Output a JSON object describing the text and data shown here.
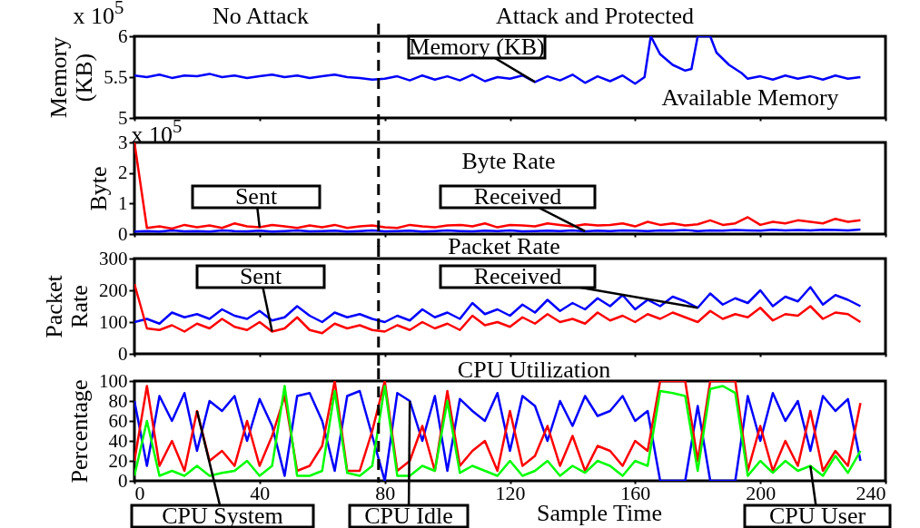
{
  "chart_data": [
    {
      "type": "line",
      "ylabel": "Memory (KB)",
      "xlim": [
        0,
        240
      ],
      "xticks": [
        0,
        40,
        80,
        120,
        160,
        200,
        240
      ],
      "ylim": [
        5,
        6
      ],
      "yticks": [
        5,
        5.5,
        6
      ],
      "tick_labels": "y",
      "x": [
        0,
        4,
        8,
        12,
        16,
        20,
        24,
        28,
        32,
        36,
        40,
        44,
        48,
        52,
        56,
        60,
        64,
        68,
        72,
        76,
        80,
        84,
        88,
        92,
        96,
        100,
        104,
        108,
        112,
        116,
        120,
        124,
        128,
        132,
        136,
        140,
        144,
        148,
        152,
        156,
        160,
        163,
        165,
        168,
        172,
        176,
        178,
        180,
        184,
        186,
        190,
        194,
        196,
        200,
        204,
        208,
        212,
        216,
        220,
        224,
        228,
        232
      ],
      "series": [
        {
          "color": "#0000ff",
          "values": [
            5.52,
            5.5,
            5.53,
            5.49,
            5.52,
            5.51,
            5.54,
            5.5,
            5.52,
            5.49,
            5.51,
            5.53,
            5.5,
            5.52,
            5.49,
            5.51,
            5.53,
            5.5,
            5.49,
            5.47,
            5.48,
            5.51,
            5.46,
            5.52,
            5.47,
            5.51,
            5.46,
            5.53,
            5.45,
            5.5,
            5.48,
            5.52,
            5.44,
            5.51,
            5.46,
            5.53,
            5.43,
            5.51,
            5.45,
            5.52,
            5.42,
            5.5,
            6,
            5.78,
            5.65,
            5.58,
            5.6,
            6,
            6,
            5.8,
            5.65,
            5.55,
            5.48,
            5.51,
            5.47,
            5.52,
            5.48,
            5.51,
            5.47,
            5.52,
            5.48,
            5.5
          ]
        }
      ],
      "ref_lines": [
        {
          "axis": "x",
          "value": 78,
          "line_style": "dashed"
        }
      ],
      "annotations": [
        "x 10$^{5}$",
        "No Attack",
        "Attack and Protected",
        "Available Memory",
        {
          "text": "Memory (KB)",
          "x": 128,
          "y": 5.44
        }
      ]
    },
    {
      "type": "line",
      "title": "Byte Rate",
      "ylabel": "Byte",
      "xlim": [
        0,
        240
      ],
      "xticks": [
        0,
        40,
        80,
        120,
        160,
        200,
        240
      ],
      "ylim": [
        0,
        3
      ],
      "yticks": [
        0,
        1,
        2,
        3
      ],
      "tick_labels": "y",
      "x": [
        0,
        4,
        8,
        12,
        16,
        20,
        24,
        28,
        32,
        36,
        40,
        44,
        48,
        52,
        56,
        60,
        64,
        68,
        72,
        76,
        80,
        84,
        88,
        92,
        96,
        100,
        104,
        108,
        112,
        116,
        120,
        124,
        128,
        132,
        136,
        140,
        144,
        148,
        152,
        156,
        160,
        164,
        168,
        172,
        176,
        180,
        184,
        188,
        192,
        196,
        200,
        204,
        208,
        212,
        216,
        220,
        224,
        228,
        232
      ],
      "series": [
        {
          "color": "#0000ff",
          "values": [
            0.08,
            0.1,
            0.08,
            0.12,
            0.09,
            0.1,
            0.08,
            0.12,
            0.1,
            0.09,
            0.11,
            0.08,
            0.1,
            0.12,
            0.09,
            0.1,
            0.11,
            0.08,
            0.1,
            0.12,
            0.09,
            0.1,
            0.11,
            0.08,
            0.1,
            0.12,
            0.1,
            0.09,
            0.11,
            0.1,
            0.12,
            0.09,
            0.1,
            0.11,
            0.1,
            0.12,
            0.09,
            0.11,
            0.1,
            0.12,
            0.11,
            0.1,
            0.12,
            0.11,
            0.13,
            0.1,
            0.12,
            0.11,
            0.13,
            0.12,
            0.11,
            0.14,
            0.12,
            0.13,
            0.12,
            0.14,
            0.13,
            0.12,
            0.15
          ]
        },
        {
          "color": "#ff0000",
          "values": [
            3,
            0.2,
            0.25,
            0.18,
            0.3,
            0.22,
            0.28,
            0.2,
            0.35,
            0.25,
            0.22,
            0.3,
            0.25,
            0.2,
            0.28,
            0.22,
            0.3,
            0.2,
            0.25,
            0.28,
            0.22,
            0.2,
            0.3,
            0.25,
            0.22,
            0.28,
            0.3,
            0.25,
            0.35,
            0.22,
            0.3,
            0.28,
            0.25,
            0.35,
            0.3,
            0.25,
            0.32,
            0.28,
            0.3,
            0.35,
            0.25,
            0.4,
            0.3,
            0.35,
            0.28,
            0.32,
            0.45,
            0.3,
            0.35,
            0.55,
            0.3,
            0.4,
            0.35,
            0.45,
            0.4,
            0.35,
            0.5,
            0.4,
            0.45
          ]
        }
      ],
      "ref_lines": [
        {
          "axis": "x",
          "value": 78,
          "line_style": "dashed"
        }
      ],
      "annotations": [
        "x 10$^{5}$",
        {
          "text": "Sent",
          "x": 40,
          "y": 0.22
        },
        {
          "text": "Received",
          "x": 144,
          "y": 0.09
        }
      ]
    },
    {
      "type": "line",
      "title": "Packet Rate",
      "ylabel": "Packet Rate",
      "xlim": [
        0,
        240
      ],
      "xticks": [
        0,
        40,
        80,
        120,
        160,
        200,
        240
      ],
      "ylim": [
        0,
        300
      ],
      "yticks": [
        0,
        100,
        200,
        300
      ],
      "tick_labels": "y",
      "x": [
        0,
        4,
        8,
        12,
        16,
        20,
        24,
        28,
        32,
        36,
        40,
        44,
        48,
        52,
        56,
        60,
        64,
        68,
        72,
        76,
        80,
        84,
        88,
        92,
        96,
        100,
        104,
        108,
        112,
        116,
        120,
        124,
        128,
        132,
        136,
        140,
        144,
        148,
        152,
        156,
        160,
        164,
        168,
        172,
        176,
        180,
        184,
        188,
        192,
        196,
        200,
        204,
        208,
        212,
        216,
        220,
        224,
        228,
        232
      ],
      "series": [
        {
          "color": "#0000ff",
          "values": [
            100,
            110,
            95,
            130,
            115,
            125,
            110,
            140,
            120,
            110,
            135,
            105,
            115,
            150,
            120,
            100,
            130,
            115,
            125,
            110,
            100,
            120,
            105,
            140,
            115,
            130,
            110,
            160,
            125,
            140,
            120,
            155,
            130,
            170,
            135,
            160,
            140,
            175,
            150,
            185,
            140,
            170,
            150,
            180,
            165,
            145,
            190,
            155,
            175,
            160,
            200,
            150,
            180,
            165,
            210,
            155,
            185,
            170,
            150
          ]
        },
        {
          "color": "#ff0000",
          "values": [
            220,
            80,
            75,
            90,
            70,
            95,
            80,
            110,
            85,
            75,
            100,
            70,
            80,
            115,
            75,
            65,
            95,
            80,
            90,
            75,
            70,
            90,
            75,
            100,
            80,
            95,
            75,
            120,
            90,
            100,
            85,
            115,
            95,
            125,
            100,
            110,
            95,
            130,
            105,
            120,
            100,
            125,
            110,
            130,
            115,
            100,
            135,
            110,
            125,
            115,
            145,
            105,
            125,
            120,
            150,
            110,
            130,
            125,
            100
          ]
        }
      ],
      "ref_lines": [
        {
          "axis": "x",
          "value": 78,
          "line_style": "dashed"
        }
      ],
      "annotations": [
        {
          "text": "Sent",
          "x": 44,
          "y": 70
        },
        {
          "text": "Received",
          "x": 180,
          "y": 145
        }
      ]
    },
    {
      "type": "line",
      "title": "CPU Utilization",
      "xlabel": "Sample Time",
      "ylabel": "Percentage",
      "xlim": [
        0,
        240
      ],
      "xticks": [
        0,
        40,
        80,
        120,
        160,
        200,
        240
      ],
      "ylim": [
        0,
        100
      ],
      "yticks": [
        0,
        20,
        40,
        60,
        80,
        100
      ],
      "x": [
        0,
        4,
        8,
        12,
        16,
        20,
        24,
        28,
        32,
        36,
        40,
        44,
        48,
        52,
        56,
        60,
        64,
        68,
        72,
        76,
        80,
        84,
        88,
        92,
        96,
        100,
        104,
        108,
        112,
        116,
        120,
        124,
        128,
        132,
        136,
        140,
        144,
        148,
        152,
        156,
        160,
        164,
        168,
        172,
        176,
        180,
        184,
        188,
        192,
        196,
        200,
        204,
        208,
        212,
        216,
        220,
        224,
        228,
        232
      ],
      "series": [
        {
          "color": "#0000ff",
          "values": [
            80,
            15,
            85,
            60,
            88,
            30,
            80,
            70,
            85,
            40,
            82,
            55,
            5,
            85,
            88,
            60,
            10,
            85,
            90,
            45,
            0,
            88,
            80,
            40,
            85,
            10,
            82,
            70,
            60,
            88,
            30,
            85,
            75,
            40,
            80,
            55,
            85,
            65,
            70,
            85,
            60,
            70,
            0,
            0,
            0,
            75,
            0,
            0,
            0,
            85,
            40,
            88,
            60,
            80,
            30,
            85,
            70,
            82,
            20
          ]
        },
        {
          "color": "#ff0000",
          "values": [
            20,
            95,
            15,
            40,
            10,
            70,
            20,
            30,
            15,
            60,
            15,
            45,
            85,
            10,
            15,
            35,
            100,
            10,
            10,
            50,
            100,
            10,
            20,
            55,
            10,
            90,
            15,
            30,
            40,
            10,
            70,
            15,
            25,
            55,
            15,
            45,
            10,
            35,
            30,
            15,
            40,
            30,
            100,
            100,
            100,
            20,
            100,
            100,
            100,
            10,
            55,
            10,
            40,
            15,
            70,
            10,
            30,
            15,
            78
          ]
        },
        {
          "color": "#00ff00",
          "values": [
            5,
            60,
            5,
            10,
            5,
            15,
            5,
            8,
            10,
            20,
            5,
            15,
            95,
            5,
            5,
            10,
            90,
            8,
            5,
            15,
            95,
            5,
            5,
            15,
            10,
            80,
            8,
            15,
            10,
            5,
            20,
            5,
            10,
            20,
            5,
            15,
            8,
            20,
            15,
            5,
            20,
            15,
            90,
            88,
            85,
            10,
            92,
            95,
            88,
            5,
            20,
            8,
            20,
            10,
            15,
            5,
            25,
            8,
            30
          ]
        }
      ],
      "ref_lines": [
        {
          "axis": "x",
          "value": 78,
          "line_style": "dashed"
        }
      ],
      "annotations": [
        {
          "text": "CPU System",
          "x": 20,
          "y": 70
        },
        {
          "text": "CPU Idle",
          "x": 88,
          "y": 80
        },
        {
          "text": "CPU User",
          "x": 216,
          "y": 15
        }
      ]
    }
  ]
}
